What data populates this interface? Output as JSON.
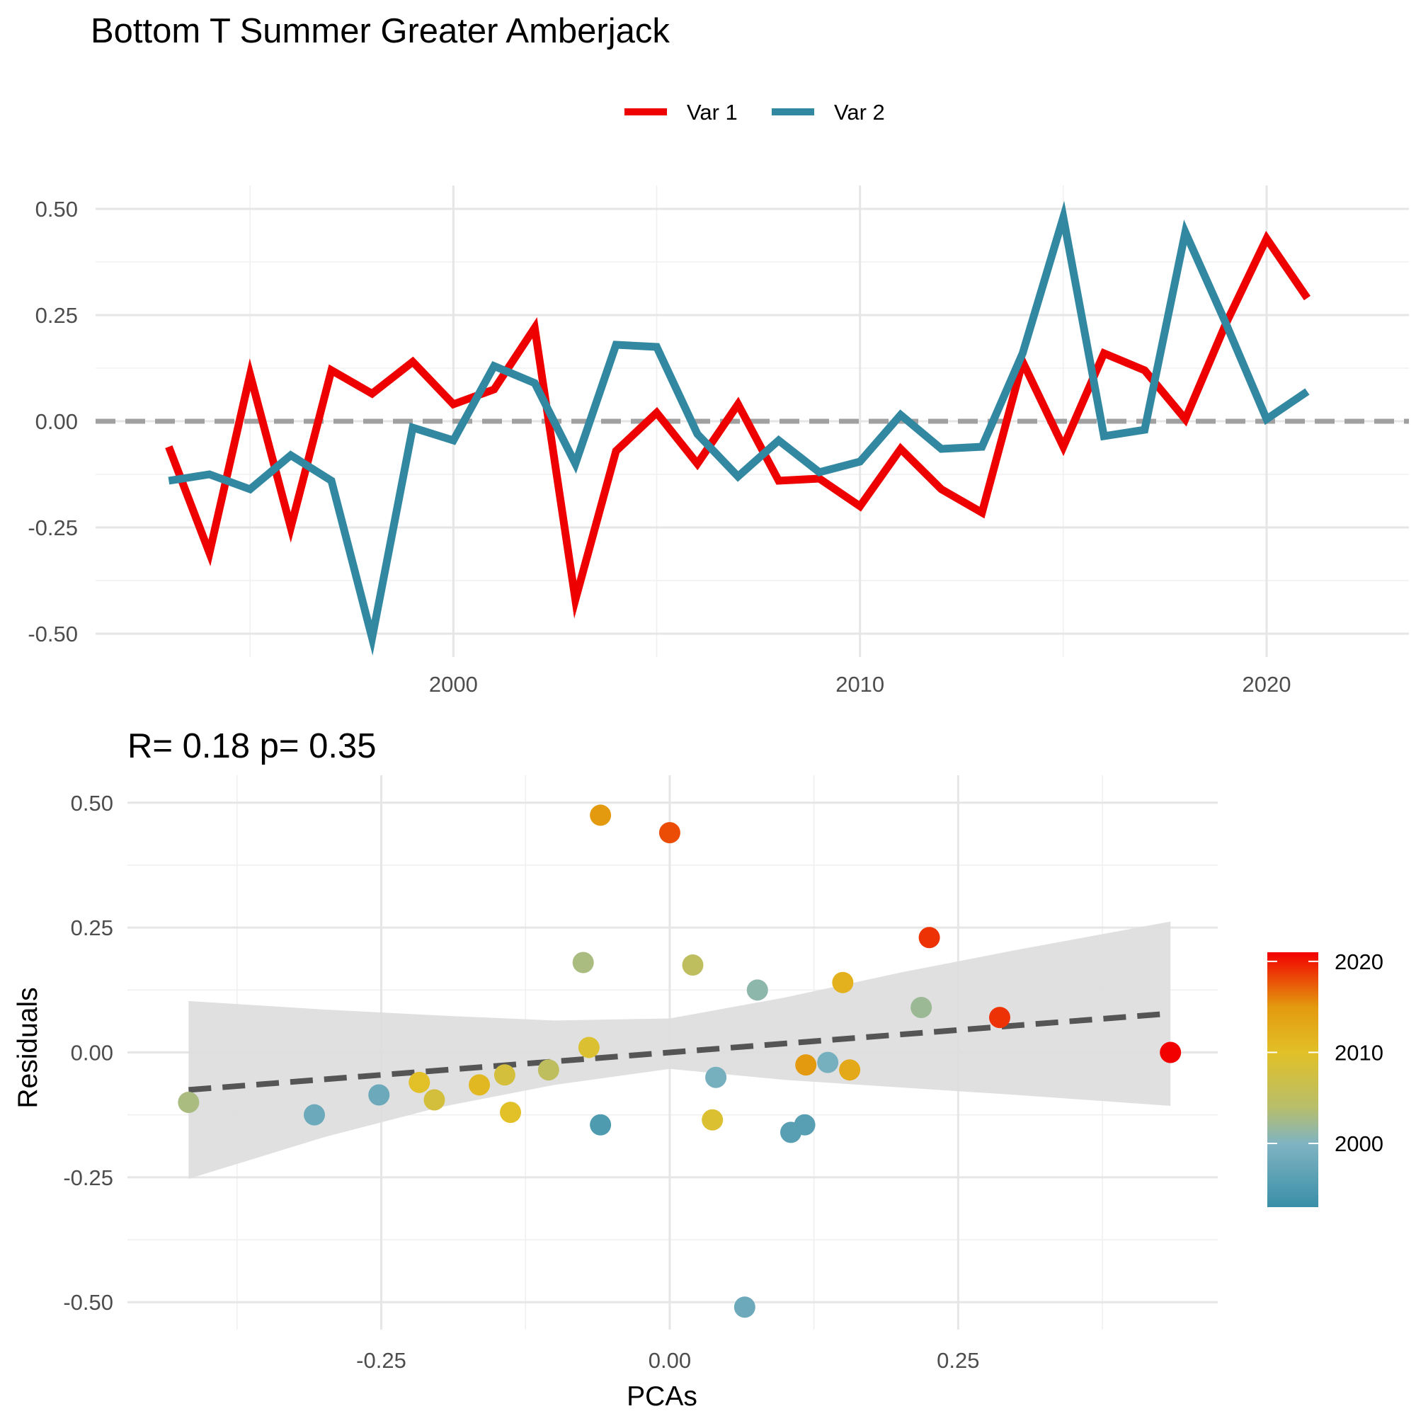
{
  "title": "Bottom T Summer Greater Amberjack",
  "chart_data": [
    {
      "type": "line",
      "legend": {
        "position": "top",
        "entries": [
          "Var 1",
          "Var 2"
        ]
      },
      "x": [
        1993,
        1994,
        1995,
        1996,
        1997,
        1998,
        1999,
        2000,
        2001,
        2002,
        2003,
        2004,
        2005,
        2006,
        2007,
        2008,
        2009,
        2010,
        2011,
        2012,
        2013,
        2014,
        2015,
        2016,
        2017,
        2018,
        2019,
        2020,
        2021
      ],
      "series": [
        {
          "name": "Var 1",
          "color": "#EE0000",
          "values": [
            -0.06,
            -0.31,
            0.11,
            -0.25,
            0.12,
            0.065,
            0.14,
            0.04,
            0.075,
            0.22,
            -0.42,
            -0.07,
            0.02,
            -0.1,
            0.04,
            -0.14,
            -0.135,
            -0.2,
            -0.065,
            -0.16,
            -0.215,
            0.14,
            -0.06,
            0.16,
            0.12,
            0.005,
            0.23,
            0.43,
            0.29
          ]
        },
        {
          "name": "Var 2",
          "color": "#3288A0",
          "values": [
            -0.14,
            -0.125,
            -0.16,
            -0.08,
            -0.14,
            -0.51,
            -0.015,
            -0.045,
            0.13,
            0.09,
            -0.1,
            0.18,
            0.175,
            -0.03,
            -0.13,
            -0.045,
            -0.12,
            -0.095,
            0.015,
            -0.065,
            -0.06,
            0.16,
            0.48,
            -0.035,
            -0.02,
            0.445,
            0.23,
            0.005,
            0.07
          ]
        }
      ],
      "reference_line": {
        "y": 0,
        "style": "dashed",
        "color": "#A0A0A0"
      },
      "xticks": [
        2000,
        2010,
        2020
      ],
      "yticks": [
        -0.5,
        -0.25,
        0,
        0.25,
        0.5
      ],
      "ytick_labels": [
        "-0.50",
        "-0.25",
        "0.00",
        "0.25",
        "0.50"
      ],
      "xlim": [
        1991.2,
        2023.5
      ],
      "ylim": [
        -0.555,
        0.555
      ],
      "grid": true
    },
    {
      "type": "scatter",
      "title": "R= 0.18  p= 0.35",
      "xlabel": "PCAs",
      "ylabel": "Residuals",
      "xticks": [
        -0.25,
        0,
        0.25
      ],
      "xtick_labels": [
        "-0.25",
        "0.00",
        "0.25"
      ],
      "yticks": [
        -0.5,
        -0.25,
        0,
        0.25,
        0.5
      ],
      "ytick_labels": [
        "-0.50",
        "-0.25",
        "0.00",
        "0.25",
        "0.50"
      ],
      "xlim": [
        -0.47,
        0.475
      ],
      "ylim": [
        -0.555,
        0.555
      ],
      "grid": true,
      "points": [
        {
          "x": -0.417,
          "y": -0.1,
          "year": 2003
        },
        {
          "x": -0.308,
          "y": -0.125,
          "year": 1998
        },
        {
          "x": -0.252,
          "y": -0.085,
          "year": 1998
        },
        {
          "x": -0.217,
          "y": -0.06,
          "year": 2010
        },
        {
          "x": -0.204,
          "y": -0.095,
          "year": 2008
        },
        {
          "x": -0.165,
          "y": -0.065,
          "year": 2011
        },
        {
          "x": -0.143,
          "y": -0.045,
          "year": 2008
        },
        {
          "x": -0.138,
          "y": -0.12,
          "year": 2010
        },
        {
          "x": -0.105,
          "y": -0.035,
          "year": 2005
        },
        {
          "x": -0.075,
          "y": 0.18,
          "year": 2003
        },
        {
          "x": -0.07,
          "y": 0.01,
          "year": 2009
        },
        {
          "x": -0.06,
          "y": 0.475,
          "year": 2015
        },
        {
          "x": -0.06,
          "y": -0.145,
          "year": 1995
        },
        {
          "x": 0.0,
          "y": 0.44,
          "year": 2018
        },
        {
          "x": 0.02,
          "y": 0.175,
          "year": 2005
        },
        {
          "x": 0.037,
          "y": -0.135,
          "year": 2009
        },
        {
          "x": 0.04,
          "y": -0.05,
          "year": 1999
        },
        {
          "x": 0.065,
          "y": -0.51,
          "year": 1998
        },
        {
          "x": 0.076,
          "y": 0.125,
          "year": 2001
        },
        {
          "x": 0.105,
          "y": -0.16,
          "year": 1996
        },
        {
          "x": 0.117,
          "y": -0.145,
          "year": 1996
        },
        {
          "x": 0.118,
          "y": -0.025,
          "year": 2015
        },
        {
          "x": 0.137,
          "y": -0.02,
          "year": 1999
        },
        {
          "x": 0.15,
          "y": 0.14,
          "year": 2012
        },
        {
          "x": 0.156,
          "y": -0.035,
          "year": 2013
        },
        {
          "x": 0.218,
          "y": 0.09,
          "year": 2002
        },
        {
          "x": 0.225,
          "y": 0.23,
          "year": 2019
        },
        {
          "x": 0.286,
          "y": 0.07,
          "year": 2019
        },
        {
          "x": 0.434,
          "y": 0.0,
          "year": 2021
        }
      ],
      "regression": {
        "x": [
          -0.417,
          0.434
        ],
        "y": [
          -0.075,
          0.078
        ],
        "style": "dashed",
        "color": "#555555"
      },
      "confidence_band": {
        "x": [
          -0.417,
          -0.3,
          -0.2,
          -0.1,
          0.0,
          0.1,
          0.2,
          0.3,
          0.434
        ],
        "upper": [
          0.103,
          0.086,
          0.074,
          0.064,
          0.068,
          0.11,
          0.16,
          0.205,
          0.262
        ],
        "lower": [
          -0.253,
          -0.17,
          -0.11,
          -0.065,
          -0.033,
          -0.055,
          -0.07,
          -0.085,
          -0.107
        ],
        "color": "#DDDDDD"
      },
      "colorbar": {
        "label_values": [
          2000,
          2010,
          2020
        ],
        "range": [
          1993,
          2021
        ],
        "stops": [
          {
            "year": 1993,
            "color": "#3A8FA8"
          },
          {
            "year": 2000,
            "color": "#80B4C2"
          },
          {
            "year": 2004,
            "color": "#B8BE6A"
          },
          {
            "year": 2010,
            "color": "#E2C027"
          },
          {
            "year": 2015,
            "color": "#E39A0E"
          },
          {
            "year": 2021,
            "color": "#F20000"
          }
        ]
      }
    }
  ]
}
